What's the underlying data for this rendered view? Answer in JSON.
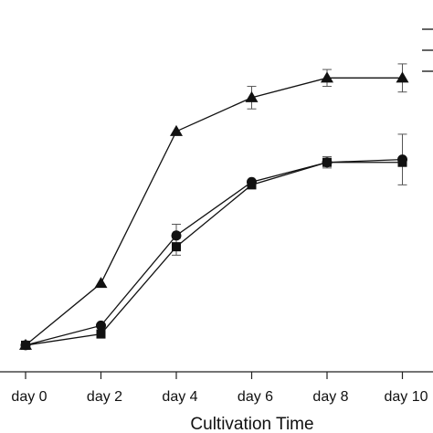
{
  "chart_data": {
    "type": "line",
    "title": "",
    "xlabel": "Cultivation Time",
    "ylabel": "",
    "categories": [
      "day 0",
      "day 2",
      "day 4",
      "day 6",
      "day 8",
      "day 10"
    ],
    "ylim": [
      0,
      100
    ],
    "grid": false,
    "series": [
      {
        "marker": "triangle",
        "values": [
          1,
          23,
          77,
          89,
          96,
          96
        ],
        "errors": [
          0,
          0,
          0,
          4,
          3,
          5
        ]
      },
      {
        "marker": "circle",
        "values": [
          1,
          8,
          40,
          59,
          66,
          67
        ],
        "errors": [
          0,
          0,
          4,
          0,
          2,
          9
        ]
      },
      {
        "marker": "square",
        "values": [
          1,
          5,
          36,
          58,
          66,
          66
        ],
        "errors": [
          0,
          0,
          3,
          0,
          0,
          0
        ]
      }
    ],
    "colors": {
      "line": "#111111",
      "axis": "#222222",
      "error_bar": "#555555"
    }
  }
}
